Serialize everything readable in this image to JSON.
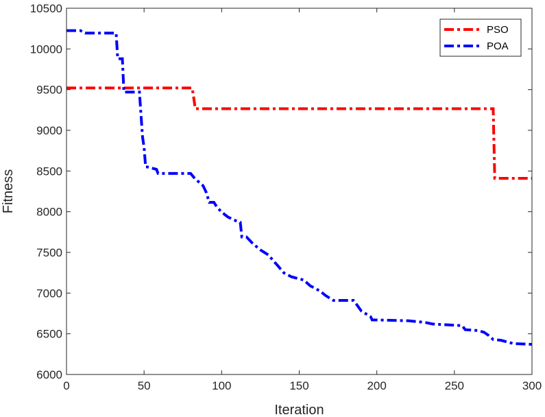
{
  "chart_data": {
    "type": "line",
    "xlabel": "Iteration",
    "ylabel": "Fitness",
    "xlim": [
      0,
      300
    ],
    "ylim": [
      6000,
      10500
    ],
    "xticks": [
      0,
      50,
      100,
      150,
      200,
      250,
      300
    ],
    "yticks": [
      6000,
      6500,
      7000,
      7500,
      8000,
      8500,
      9000,
      9500,
      10000,
      10500
    ],
    "grid": false,
    "legend_position": "top-right",
    "series": [
      {
        "name": "PSO",
        "color": "#ff0000",
        "style": "dash-dot",
        "x": [
          0,
          81,
          82,
          83,
          275,
          276,
          300
        ],
        "y": [
          9520,
          9520,
          9400,
          9265,
          9265,
          8410,
          8410
        ]
      },
      {
        "name": "POA",
        "color": "#0000ff",
        "style": "dash-dot",
        "x": [
          0,
          9,
          12,
          32,
          33,
          36,
          37,
          47,
          49,
          50,
          51,
          52,
          58,
          59,
          80,
          83,
          85,
          88,
          90,
          92,
          95,
          97,
          100,
          104,
          109,
          112,
          113,
          116,
          120,
          125,
          130,
          136,
          140,
          145,
          153,
          157,
          163,
          167,
          172,
          185,
          187,
          190,
          196,
          197,
          200,
          220,
          231,
          236,
          255,
          257,
          265,
          269,
          272,
          275,
          280,
          288,
          300
        ],
        "y": [
          10225,
          10225,
          10195,
          10195,
          9880,
          9880,
          9470,
          9470,
          8920,
          8790,
          8550,
          8550,
          8520,
          8470,
          8470,
          8400,
          8370,
          8320,
          8240,
          8115,
          8115,
          8055,
          7995,
          7935,
          7890,
          7870,
          7690,
          7690,
          7610,
          7530,
          7470,
          7340,
          7250,
          7200,
          7160,
          7090,
          7030,
          6970,
          6910,
          6910,
          6860,
          6780,
          6710,
          6670,
          6670,
          6660,
          6640,
          6620,
          6600,
          6550,
          6540,
          6520,
          6480,
          6430,
          6420,
          6380,
          6370
        ]
      }
    ]
  }
}
